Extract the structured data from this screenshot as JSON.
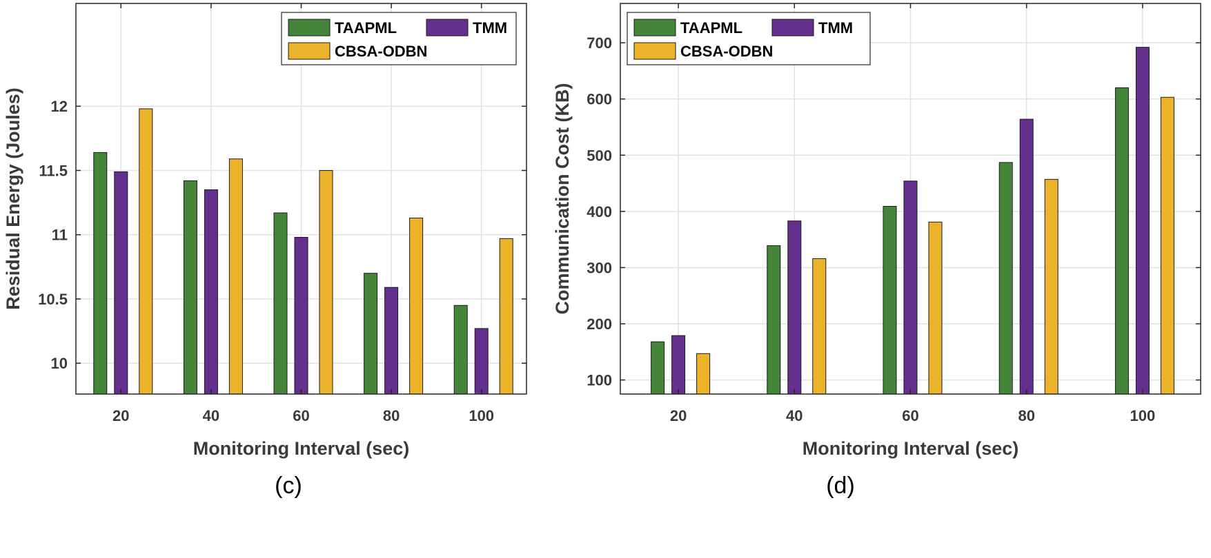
{
  "colors": {
    "TAAPML": "#44853a",
    "TMM": "#632f8c",
    "CBSA-ODBN": "#ebb32a",
    "grid": "#e2e2e2",
    "axis": "#262626"
  },
  "chart_data": [
    {
      "type": "bar",
      "caption": "(c)",
      "categories": [
        "20",
        "40",
        "60",
        "80",
        "100"
      ],
      "series": [
        {
          "name": "TAAPML",
          "values": [
            11.64,
            11.42,
            11.17,
            10.7,
            10.45
          ]
        },
        {
          "name": "TMM",
          "values": [
            11.49,
            11.35,
            10.98,
            10.59,
            10.27
          ]
        },
        {
          "name": "CBSA-ODBN",
          "values": [
            11.98,
            11.59,
            11.5,
            11.13,
            10.97
          ]
        }
      ],
      "xlabel": "Monitoring Interval (sec)",
      "ylabel": "Residual Energy (Joules)",
      "ylim": [
        9.76,
        12.8
      ],
      "yticks": [
        10,
        10.5,
        11,
        11.5,
        12
      ],
      "ytick_labels": [
        "10",
        "10.5",
        "11",
        "11.5",
        "12"
      ],
      "grid": true,
      "legend_position": "top-right"
    },
    {
      "type": "bar",
      "caption": "(d)",
      "categories": [
        "20",
        "40",
        "60",
        "80",
        "100"
      ],
      "series": [
        {
          "name": "TAAPML",
          "values": [
            168,
            339,
            409,
            487,
            620
          ]
        },
        {
          "name": "TMM",
          "values": [
            179,
            383,
            454,
            564,
            692
          ]
        },
        {
          "name": "CBSA-ODBN",
          "values": [
            147,
            316,
            381,
            457,
            603
          ]
        }
      ],
      "xlabel": "Monitoring Interval (sec)",
      "ylabel": "Communication Cost (KB)",
      "ylim": [
        75,
        770
      ],
      "yticks": [
        100,
        200,
        300,
        400,
        500,
        600,
        700
      ],
      "ytick_labels": [
        "100",
        "200",
        "300",
        "400",
        "500",
        "600",
        "700"
      ],
      "grid": true,
      "legend_position": "top-right"
    }
  ]
}
